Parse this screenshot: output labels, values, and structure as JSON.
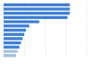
{
  "chart_data": {
    "type": "bar",
    "orientation": "horizontal",
    "categories": [
      null,
      null,
      null,
      null,
      null,
      null,
      null,
      null,
      null,
      null,
      null,
      null,
      null
    ],
    "values": [
      80,
      80,
      80,
      77,
      43,
      31,
      27,
      25,
      23,
      21,
      19,
      17,
      15
    ],
    "colors": [
      "#3f7fd6",
      "#3f7fd6",
      "#3f7fd6",
      "#3f7fd6",
      "#3f7fd6",
      "#3f7fd6",
      "#3f7fd6",
      "#3f7fd6",
      "#3f7fd6",
      "#3f7fd6",
      "#3f7fd6",
      "#a8bfe3",
      "#a8bfe3"
    ],
    "xlim": [
      0,
      100
    ],
    "xticks": [
      0,
      25,
      50,
      75,
      100
    ],
    "grid": true,
    "tick_labels": false
  }
}
